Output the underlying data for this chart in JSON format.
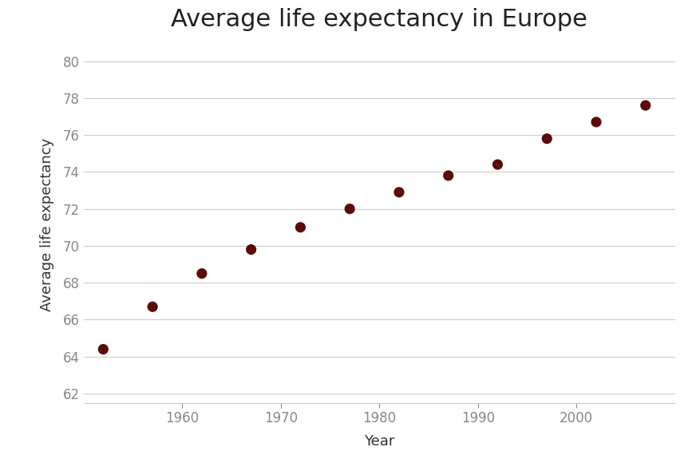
{
  "title": "Average life expectancy in Europe",
  "xlabel": "Year",
  "ylabel": "Average life expectancy",
  "x": [
    1952,
    1957,
    1962,
    1967,
    1972,
    1977,
    1982,
    1987,
    1992,
    1997,
    2002,
    2007
  ],
  "y": [
    64.4,
    66.7,
    68.5,
    69.8,
    71.0,
    72.0,
    72.9,
    73.8,
    74.4,
    75.8,
    76.7,
    77.6
  ],
  "marker_color": "#5c0a0a",
  "marker_size": 90,
  "xlim": [
    1950,
    2010
  ],
  "ylim": [
    61.5,
    80.8
  ],
  "yticks": [
    62,
    64,
    66,
    68,
    70,
    72,
    74,
    76,
    78,
    80
  ],
  "xticks": [
    1960,
    1970,
    1980,
    1990,
    2000
  ],
  "background_color": "#ffffff",
  "grid_color": "#cccccc",
  "title_fontsize": 22,
  "label_fontsize": 13,
  "tick_fontsize": 12,
  "tick_color": "#888888"
}
